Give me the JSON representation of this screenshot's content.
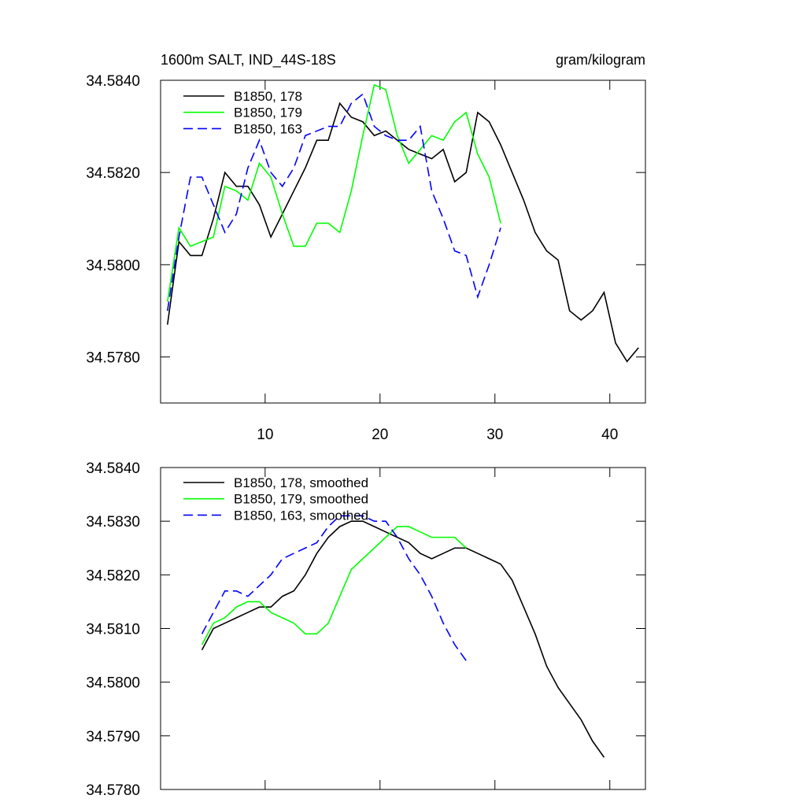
{
  "chart_data": [
    {
      "type": "line",
      "title": "1600m SALT, IND_44S-18S",
      "units": "gram/kilogram",
      "xlim": [
        0.9,
        43.1
      ],
      "xticks": [
        10,
        20,
        30,
        40
      ],
      "ylim": [
        34.577,
        34.584
      ],
      "yticks": [
        {
          "value": 34.578,
          "label": "34.5780"
        },
        {
          "value": 34.58,
          "label": "34.5800"
        },
        {
          "value": 34.582,
          "label": "34.5820"
        },
        {
          "value": 34.584,
          "label": "34.5840"
        }
      ],
      "legend": "upper left",
      "series": [
        {
          "name": "B1850, 178",
          "color": "#000000",
          "dash": "solid",
          "x": [
            1.5,
            2.5,
            3.5,
            4.5,
            5.5,
            6.5,
            7.5,
            8.5,
            9.5,
            10.5,
            11.5,
            12.5,
            13.5,
            14.5,
            15.5,
            16.5,
            17.5,
            18.5,
            19.5,
            20.5,
            21.5,
            22.5,
            23.5,
            24.5,
            25.5,
            26.5,
            27.5,
            28.5,
            29.5,
            30.5,
            31.5,
            32.5,
            33.5,
            34.5,
            35.5,
            36.5,
            37.5,
            38.5,
            39.5,
            40.5,
            41.5,
            42.5
          ],
          "values": [
            34.5787,
            34.5805,
            34.5802,
            34.5802,
            34.581,
            34.582,
            34.5817,
            34.5817,
            34.5813,
            34.5806,
            34.5811,
            34.5816,
            34.5821,
            34.5827,
            34.5827,
            34.5835,
            34.5832,
            34.5831,
            34.5828,
            34.5829,
            34.5827,
            34.5825,
            34.5824,
            34.5823,
            34.5825,
            34.5818,
            34.582,
            34.5833,
            34.5831,
            34.5826,
            34.582,
            34.5814,
            34.5807,
            34.5803,
            34.5801,
            34.579,
            34.5788,
            34.579,
            34.5794,
            34.5783,
            34.5779,
            34.5782
          ]
        },
        {
          "name": "B1850, 179",
          "color": "#00ff00",
          "dash": "solid",
          "x": [
            1.5,
            2.5,
            3.5,
            4.5,
            5.5,
            6.5,
            7.5,
            8.5,
            9.5,
            10.5,
            11.5,
            12.5,
            13.5,
            14.5,
            15.5,
            16.5,
            17.5,
            18.5,
            19.5,
            20.5,
            21.5,
            22.5,
            23.5,
            24.5,
            25.5,
            26.5,
            27.5,
            28.5,
            29.5,
            30.5
          ],
          "values": [
            34.5792,
            34.5808,
            34.5804,
            34.5805,
            34.5806,
            34.5817,
            34.5816,
            34.5814,
            34.5822,
            34.5819,
            34.5811,
            34.5804,
            34.5804,
            34.5809,
            34.5809,
            34.5807,
            34.5816,
            34.5828,
            34.5839,
            34.5838,
            34.5828,
            34.5822,
            34.5825,
            34.5828,
            34.5827,
            34.5831,
            34.5833,
            34.5824,
            34.5819,
            34.5809
          ]
        },
        {
          "name": "B1850, 163",
          "color": "#0000ff",
          "dash": "dashed",
          "x": [
            1.5,
            2.5,
            3.5,
            4.5,
            5.5,
            6.5,
            7.5,
            8.5,
            9.5,
            10.5,
            11.5,
            12.5,
            13.5,
            14.5,
            15.5,
            16.5,
            17.5,
            18.5,
            19.5,
            20.5,
            21.5,
            22.5,
            23.5,
            24.5,
            25.5,
            26.5,
            27.5,
            28.5,
            29.5,
            30.5
          ],
          "values": [
            34.579,
            34.5806,
            34.5819,
            34.5819,
            34.5813,
            34.5807,
            34.5811,
            34.5821,
            34.5827,
            34.582,
            34.5817,
            34.5821,
            34.5828,
            34.5829,
            34.583,
            34.583,
            34.5835,
            34.5837,
            34.583,
            34.5828,
            34.5827,
            34.5827,
            34.583,
            34.5816,
            34.581,
            34.5803,
            34.5802,
            34.5793,
            34.58,
            34.5808
          ]
        }
      ]
    },
    {
      "type": "line",
      "xlim": [
        0.9,
        43.1
      ],
      "xticks": [
        10,
        20,
        30,
        40
      ],
      "ylim": [
        34.578,
        34.584
      ],
      "yticks": [
        {
          "value": 34.578,
          "label": "34.5780"
        },
        {
          "value": 34.579,
          "label": "34.5790"
        },
        {
          "value": 34.58,
          "label": "34.5800"
        },
        {
          "value": 34.581,
          "label": "34.5810"
        },
        {
          "value": 34.582,
          "label": "34.5820"
        },
        {
          "value": 34.583,
          "label": "34.5830"
        },
        {
          "value": 34.584,
          "label": "34.5840"
        }
      ],
      "legend": "upper left",
      "series": [
        {
          "name": "B1850, 178, smoothed",
          "color": "#000000",
          "dash": "solid",
          "x": [
            4.5,
            5.5,
            6.5,
            7.5,
            8.5,
            9.5,
            10.5,
            11.5,
            12.5,
            13.5,
            14.5,
            15.5,
            16.5,
            17.5,
            18.5,
            19.5,
            20.5,
            21.5,
            22.5,
            23.5,
            24.5,
            25.5,
            26.5,
            27.5,
            28.5,
            29.5,
            30.5,
            31.5,
            32.5,
            33.5,
            34.5,
            35.5,
            36.5,
            37.5,
            38.5,
            39.5
          ],
          "values": [
            34.5806,
            34.581,
            34.5811,
            34.5812,
            34.5813,
            34.5814,
            34.5814,
            34.5816,
            34.5817,
            34.582,
            34.5824,
            34.5827,
            34.5829,
            34.583,
            34.583,
            34.5829,
            34.5828,
            34.5827,
            34.5826,
            34.5824,
            34.5823,
            34.5824,
            34.5825,
            34.5825,
            34.5824,
            34.5823,
            34.5822,
            34.5819,
            34.5814,
            34.5809,
            34.5803,
            34.5799,
            34.5796,
            34.5793,
            34.5789,
            34.5786
          ]
        },
        {
          "name": "B1850, 179, smoothed",
          "color": "#00ff00",
          "dash": "solid",
          "x": [
            4.5,
            5.5,
            6.5,
            7.5,
            8.5,
            9.5,
            10.5,
            11.5,
            12.5,
            13.5,
            14.5,
            15.5,
            16.5,
            17.5,
            18.5,
            19.5,
            20.5,
            21.5,
            22.5,
            23.5,
            24.5,
            25.5,
            26.5,
            27.5
          ],
          "values": [
            34.5807,
            34.5811,
            34.5812,
            34.5814,
            34.5815,
            34.5815,
            34.5813,
            34.5812,
            34.5811,
            34.5809,
            34.5809,
            34.5811,
            34.5816,
            34.5821,
            34.5823,
            34.5825,
            34.5827,
            34.5829,
            34.5829,
            34.5828,
            34.5827,
            34.5827,
            34.5827,
            34.5825
          ]
        },
        {
          "name": "B1850, 163, smoothed",
          "color": "#0000ff",
          "dash": "dashed",
          "x": [
            4.5,
            5.5,
            6.5,
            7.5,
            8.5,
            9.5,
            10.5,
            11.5,
            12.5,
            13.5,
            14.5,
            15.5,
            16.5,
            17.5,
            18.5,
            19.5,
            20.5,
            21.5,
            22.5,
            23.5,
            24.5,
            25.5,
            26.5,
            27.5
          ],
          "values": [
            34.5809,
            34.5813,
            34.5817,
            34.5817,
            34.5816,
            34.5818,
            34.582,
            34.5823,
            34.5824,
            34.5825,
            34.5826,
            34.5829,
            34.5831,
            34.5831,
            34.5831,
            34.583,
            34.583,
            34.5827,
            34.5823,
            34.582,
            34.5816,
            34.5811,
            34.5807,
            34.5804
          ]
        }
      ]
    }
  ]
}
